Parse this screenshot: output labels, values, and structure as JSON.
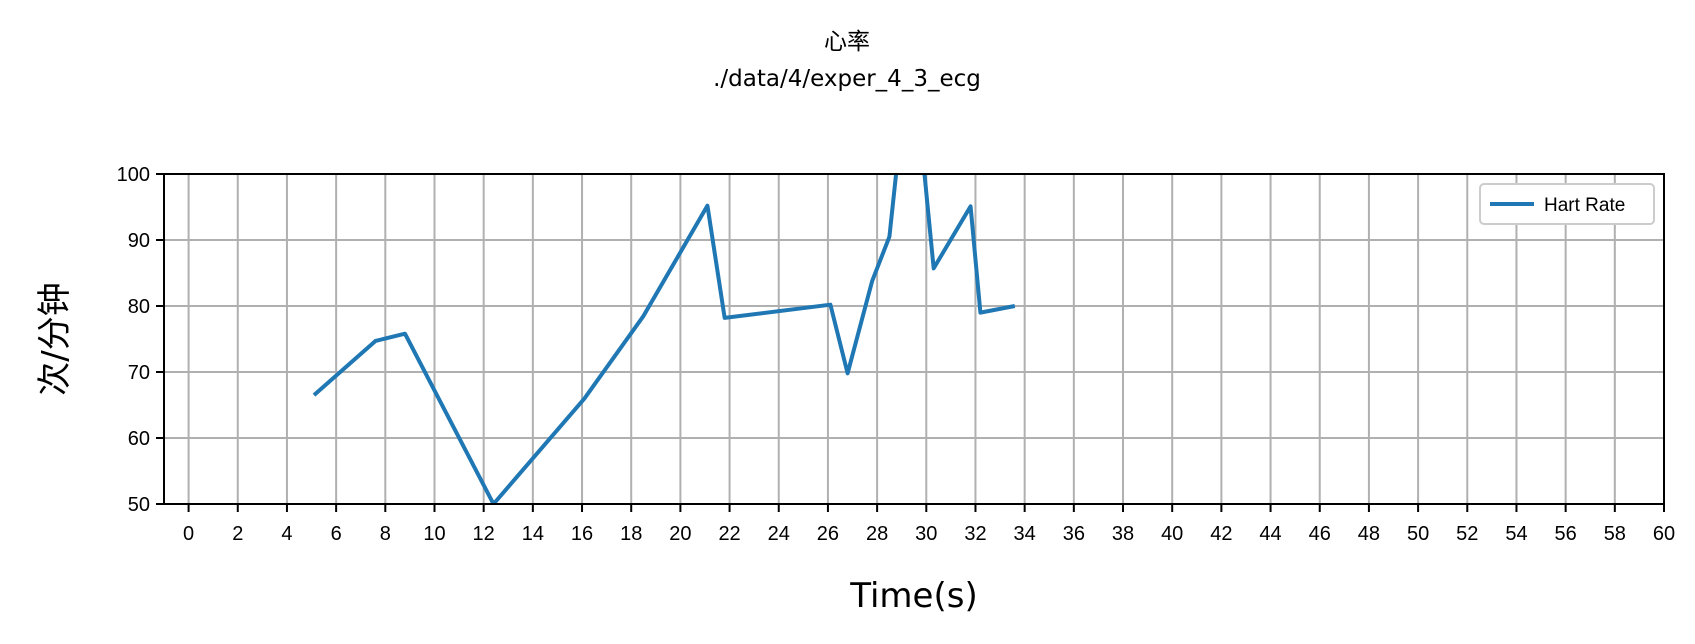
{
  "chart_data": {
    "type": "line",
    "title": "心率",
    "subtitle": "./data/4/exper_4_3_ecg",
    "xlabel": "Time(s)",
    "ylabel": "次/分钟",
    "xlim": [
      -1,
      60
    ],
    "ylim": [
      50,
      100
    ],
    "xticks": [
      0,
      2,
      4,
      6,
      8,
      10,
      12,
      14,
      16,
      18,
      20,
      22,
      24,
      26,
      28,
      30,
      32,
      34,
      36,
      38,
      40,
      42,
      44,
      46,
      48,
      50,
      52,
      54,
      56,
      58,
      60
    ],
    "yticks": [
      50,
      60,
      70,
      80,
      90,
      100
    ],
    "grid": true,
    "legend": "top-right",
    "colors": {
      "series": "#1f77b4",
      "grid": "#b0b0b0",
      "axis": "#000000"
    },
    "series": [
      {
        "name": "Hart Rate",
        "x": [
          5.1,
          7.6,
          8.8,
          12.4,
          16.1,
          18.5,
          21.1,
          21.8,
          26.1,
          26.8,
          27.8,
          28.5,
          28.8,
          29.9,
          30.3,
          31.8,
          32.2,
          33.6
        ],
        "y": [
          66.5,
          74.7,
          75.8,
          50.0,
          66.0,
          78.5,
          95.2,
          78.2,
          80.2,
          69.8,
          83.8,
          90.5,
          101.0,
          101.0,
          85.7,
          95.1,
          79.0,
          80.0
        ]
      }
    ]
  }
}
